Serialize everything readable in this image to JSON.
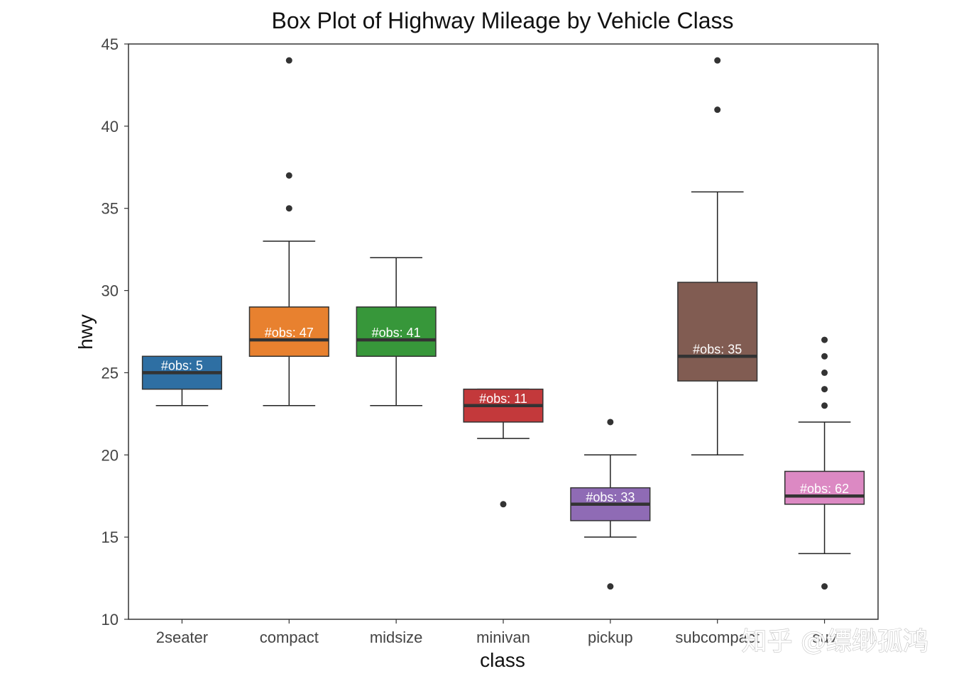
{
  "chart_data": {
    "type": "box",
    "title": "Box Plot of Highway Mileage by Vehicle Class",
    "xlabel": "class",
    "ylabel": "hwy",
    "ylim": [
      10,
      45
    ],
    "yticks": [
      10,
      15,
      20,
      25,
      30,
      35,
      40,
      45
    ],
    "grid": false,
    "categories": [
      "2seater",
      "compact",
      "midsize",
      "minivan",
      "pickup",
      "subcompact",
      "suv"
    ],
    "boxes": [
      {
        "category": "2seater",
        "whisker_low": 23,
        "q1": 24,
        "median": 25,
        "q3": 26,
        "whisker_high": 26,
        "outliers": [],
        "obs_label": "#obs: 5",
        "color": "#2e6fa3"
      },
      {
        "category": "compact",
        "whisker_low": 23,
        "q1": 26,
        "median": 27,
        "q3": 29,
        "whisker_high": 33,
        "outliers": [
          35,
          37,
          44
        ],
        "obs_label": "#obs: 47",
        "color": "#e8812f"
      },
      {
        "category": "midsize",
        "whisker_low": 23,
        "q1": 26,
        "median": 27,
        "q3": 29,
        "whisker_high": 32,
        "outliers": [],
        "obs_label": "#obs: 41",
        "color": "#37973a"
      },
      {
        "category": "minivan",
        "whisker_low": 21,
        "q1": 22,
        "median": 23,
        "q3": 24,
        "whisker_high": 24,
        "outliers": [
          17
        ],
        "obs_label": "#obs: 11",
        "color": "#c3393b"
      },
      {
        "category": "pickup",
        "whisker_low": 15,
        "q1": 16,
        "median": 17,
        "q3": 18,
        "whisker_high": 20,
        "outliers": [
          12,
          22
        ],
        "obs_label": "#obs: 33",
        "color": "#8f6bb5"
      },
      {
        "category": "subcompact",
        "whisker_low": 20,
        "q1": 24.5,
        "median": 26,
        "q3": 30.5,
        "whisker_high": 36,
        "outliers": [
          41,
          44
        ],
        "obs_label": "#obs: 35",
        "color": "#815c52"
      },
      {
        "category": "suv",
        "whisker_low": 14,
        "q1": 17,
        "median": 17.5,
        "q3": 19,
        "whisker_high": 22,
        "outliers": [
          12,
          23,
          24,
          25,
          26,
          27
        ],
        "obs_label": "#obs: 62",
        "color": "#dc89c3"
      }
    ]
  },
  "watermark": "知乎 @缥缈孤鸿"
}
